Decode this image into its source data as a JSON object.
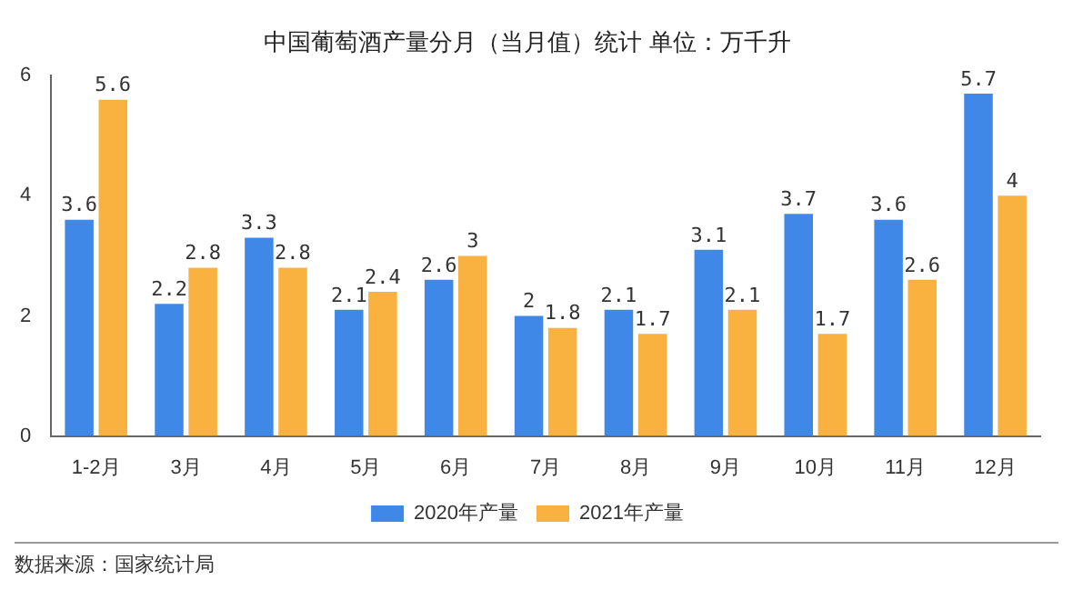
{
  "chart_data": {
    "type": "bar",
    "title": "中国葡萄酒产量分月（当月值）统计 单位：万千升",
    "categories": [
      "1-2月",
      "3月",
      "4月",
      "5月",
      "6月",
      "7月",
      "8月",
      "9月",
      "10月",
      "11月",
      "12月"
    ],
    "series": [
      {
        "name": "2020年产量",
        "color": "#4088e8",
        "values": [
          3.6,
          2.2,
          3.3,
          2.1,
          2.6,
          2,
          2.1,
          3.1,
          3.7,
          3.6,
          5.7
        ]
      },
      {
        "name": "2021年产量",
        "color": "#f9b13f",
        "values": [
          5.6,
          2.8,
          2.8,
          2.4,
          3,
          1.8,
          1.7,
          2.1,
          1.7,
          2.6,
          4
        ]
      }
    ],
    "ylim": [
      0,
      6
    ],
    "yticks": [
      0,
      2,
      4,
      6
    ],
    "grid": false,
    "legend": "bottom",
    "data_labels": true,
    "annotations": [
      "数据来源：国家统计局"
    ]
  }
}
